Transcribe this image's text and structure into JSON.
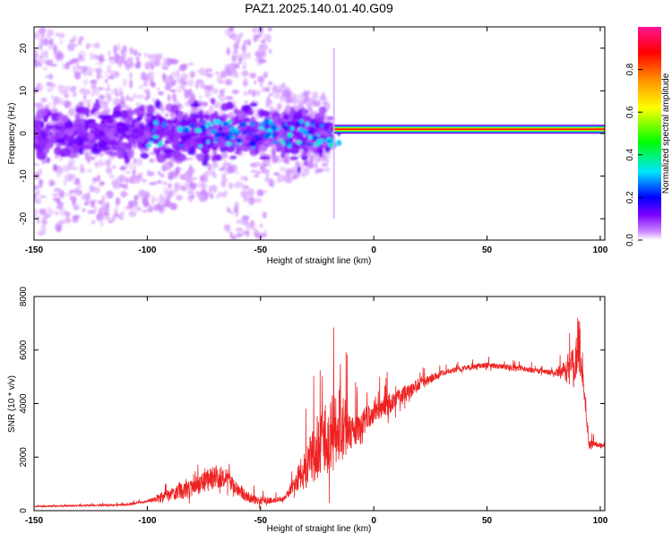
{
  "title": "PAZ1.2025.140.01.40.G09",
  "chart_data": [
    {
      "type": "heatmap",
      "xlabel": "Height of straight line (km)",
      "ylabel": "Frequency (Hz)",
      "xlim": [
        -150,
        102
      ],
      "ylim": [
        -25,
        25
      ],
      "xticks": [
        -150,
        -100,
        -50,
        0,
        50,
        100
      ],
      "yticks": [
        -20,
        -10,
        0,
        10,
        20
      ],
      "colorbar": {
        "label": "Normalized spectral amplitude",
        "range": [
          0,
          1
        ],
        "ticks": [
          "0.0",
          "0.2",
          "0.4",
          "0.6",
          "0.8"
        ],
        "tick_values": [
          0.0,
          0.2,
          0.4,
          0.6,
          0.8
        ],
        "colors": [
          "#ffffff",
          "#cc88ff",
          "#7a00ff",
          "#0000ff",
          "#00e5ff",
          "#00ff00",
          "#ffff00",
          "#ff8800",
          "#ff0000",
          "#ff1493"
        ]
      },
      "features": {
        "scatter_region_x": [
          -150,
          -20
        ],
        "noise_spread_hz": 25,
        "band_frequency_hz": 1,
        "band_region_x": [
          -18,
          102
        ]
      }
    },
    {
      "type": "line",
      "xlabel": "Height of straight line (km)",
      "ylabel": "SNR (10 * v/v)",
      "xlim": [
        -150,
        102
      ],
      "ylim": [
        0,
        8000
      ],
      "xticks": [
        -150,
        -100,
        -50,
        0,
        50,
        100
      ],
      "yticks": [
        0,
        2000,
        4000,
        6000,
        8000
      ],
      "series": [
        {
          "color": "#ee2222",
          "envelope": {
            "x": [
              -150,
              -110,
              -95,
              -80,
              -70,
              -65,
              -60,
              -55,
              -50,
              -40,
              -30,
              -25,
              -20,
              -15,
              -10,
              -5,
              0,
              10,
              20,
              30,
              40,
              50,
              60,
              70,
              80,
              85,
              88,
              90,
              92,
              95,
              102
            ],
            "y": [
              150,
              200,
              400,
              700,
              1100,
              1100,
              700,
              400,
              300,
              400,
              1300,
              1800,
              2200,
              2700,
              2600,
              3100,
              3500,
              4000,
              4600,
              5100,
              5300,
              5400,
              5300,
              5200,
              5100,
              5100,
              5000,
              5800,
              5200,
              2400,
              2400
            ]
          },
          "noise_amplitude": {
            "x": [
              -150,
              -100,
              -95,
              -70,
              -60,
              -40,
              -35,
              -25,
              -15,
              -10,
              0,
              20,
              30,
              50,
              80,
              88,
              91,
              93,
              102
            ],
            "y": [
              40,
              80,
              350,
              900,
              500,
              150,
              700,
              2500,
              3000,
              1200,
              900,
              500,
              200,
              200,
              200,
              1500,
              2500,
              400,
              150
            ]
          }
        }
      ]
    }
  ]
}
